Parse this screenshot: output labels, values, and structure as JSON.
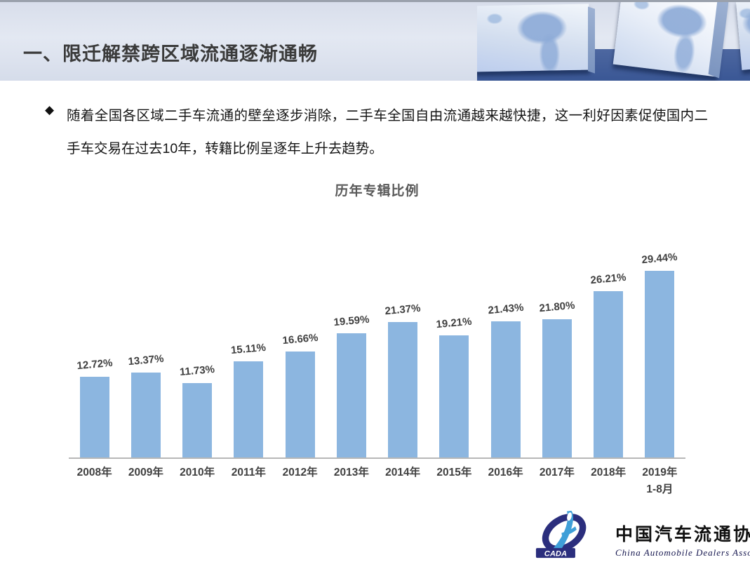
{
  "slide": {
    "title": "一、限迁解禁跨区域流通逐渐通畅",
    "bullet_marker": "◆",
    "bullet_text": "随着全国各区域二手车流通的壁垒逐步消除，二手车全国自由流通越来越快捷，这一利好因素促使国内二手车交易在过去10年，转籍比例呈逐年上升去趋势。"
  },
  "chart_data": {
    "type": "bar",
    "title": "历年专辑比例",
    "categories": [
      "2008年",
      "2009年",
      "2010年",
      "2011年",
      "2012年",
      "2013年",
      "2014年",
      "2015年",
      "2016年",
      "2017年",
      "2018年",
      "2019年\n1-8月"
    ],
    "values": [
      12.72,
      13.37,
      11.73,
      15.11,
      16.66,
      19.59,
      21.37,
      19.21,
      21.43,
      21.8,
      26.21,
      29.44
    ],
    "value_labels": [
      "12.72%",
      "13.37%",
      "11.73%",
      "15.11%",
      "16.66%",
      "19.59%",
      "21.37%",
      "19.21%",
      "21.43%",
      "21.80%",
      "26.21%",
      "29.44%"
    ],
    "ylim": [
      0,
      32.1
    ],
    "grid": false,
    "legend": false,
    "bar_color": "#8cb6e0",
    "value_label_color": "#404040",
    "axis_color": "#b7b7b7",
    "title_color": "#595959"
  },
  "logo": {
    "acronym": "CADA",
    "name_cn": "中国汽车流通协会",
    "name_en": "China Automobile Dealers Association",
    "primary_color": "#2b2e7d",
    "accent_color": "#3f9fd8"
  }
}
